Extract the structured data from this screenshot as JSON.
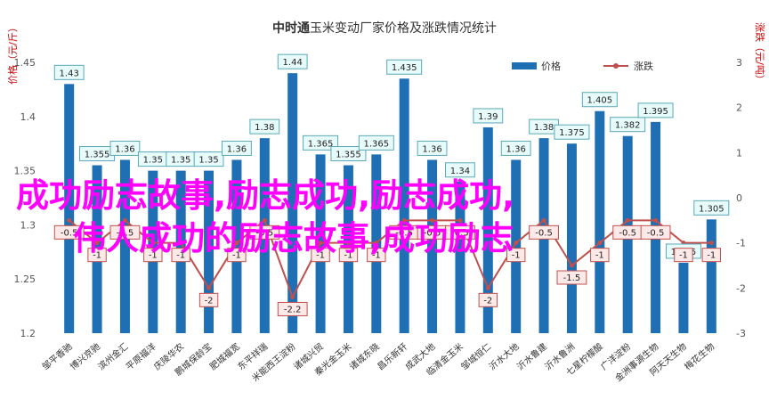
{
  "chart_data": {
    "type": "bar",
    "title_strong": "中时通",
    "title_rest": "玉米变动厂家价格及涨跌情况统计",
    "y_left_unit": "价格（元/斤）",
    "y_right_unit": "涨跌（元/吨）",
    "categories": [
      "邹平香驰",
      "博兴京驰",
      "滨州金汇",
      "平原福洋",
      "庆陵华农",
      "鹏城保龄宝",
      "肥城福宽",
      "东平祥瑞",
      "米能西王淀粉",
      "诸城兴贸",
      "秦光金玉米",
      "诸城东晓",
      "昌乐新轩",
      "成武大地",
      "临清金玉米",
      "邹城恒仁",
      "沂水大地",
      "沂水鲁建",
      "沂水鲁洲",
      "七星柠檬酸",
      "广洋淀粉",
      "金洲事源生物",
      "阿天天生物",
      "梅花生物"
    ],
    "series": [
      {
        "name": "价格",
        "kind": "bar",
        "axis": "left",
        "color": "#1f6fb5",
        "values": [
          1.43,
          1.355,
          1.36,
          1.35,
          1.35,
          1.35,
          1.36,
          1.38,
          1.44,
          1.365,
          1.355,
          1.365,
          1.435,
          1.36,
          1.34,
          1.39,
          1.36,
          1.38,
          1.375,
          1.405,
          1.382,
          1.395,
          1.265,
          1.305
        ],
        "labels": [
          "1.43",
          "1.355",
          "1.36",
          "1.35",
          "1.35",
          "1.35",
          "1.36",
          "1.38",
          "1.44",
          "1.365",
          "1.355",
          "1.365",
          "1.435",
          "1.36",
          "1.34",
          "1.39",
          "1.36",
          "1.38",
          "1.375",
          "1.405",
          "1.382",
          "1.395",
          "1.265",
          "1.305"
        ]
      },
      {
        "name": "涨跌",
        "kind": "line",
        "axis": "right",
        "color": "#c0504d",
        "values": [
          -0.5,
          -1,
          -0.5,
          -1,
          -1,
          -2,
          -1,
          -0.5,
          -2.2,
          -1,
          -1,
          -1,
          -0.5,
          -0.5,
          -0.5,
          -2,
          -1,
          -0.5,
          -1.5,
          -1,
          -0.5,
          -0.5,
          -1,
          -1
        ],
        "labels": [
          "-0.5",
          "-1",
          "-0.5",
          "-1",
          "-1",
          "-2",
          "-1",
          "-0.5",
          "-2.2",
          "-1",
          "-1",
          "-1",
          "-0.5",
          "-0.5",
          "-0.5",
          "-2",
          "-1",
          "-0.5",
          "-1.5",
          "-1",
          "-0.5",
          "-0.5",
          "-1",
          "-1"
        ]
      }
    ],
    "y_left": {
      "min": 1.2,
      "max": 1.45,
      "ticks": [
        "1.2",
        "1.25",
        "1.3",
        "1.35",
        "1.4",
        "1.45"
      ]
    },
    "y_right": {
      "min": -3,
      "max": 3,
      "ticks": [
        "-3",
        "-2",
        "-1",
        "0",
        "1",
        "2",
        "3"
      ]
    },
    "legend_position": "top-right",
    "grid": false,
    "overlay_text": [
      "成功励志故事,励志成功,励志成功,",
      "伟人成功的励志故事,成功励志"
    ]
  }
}
